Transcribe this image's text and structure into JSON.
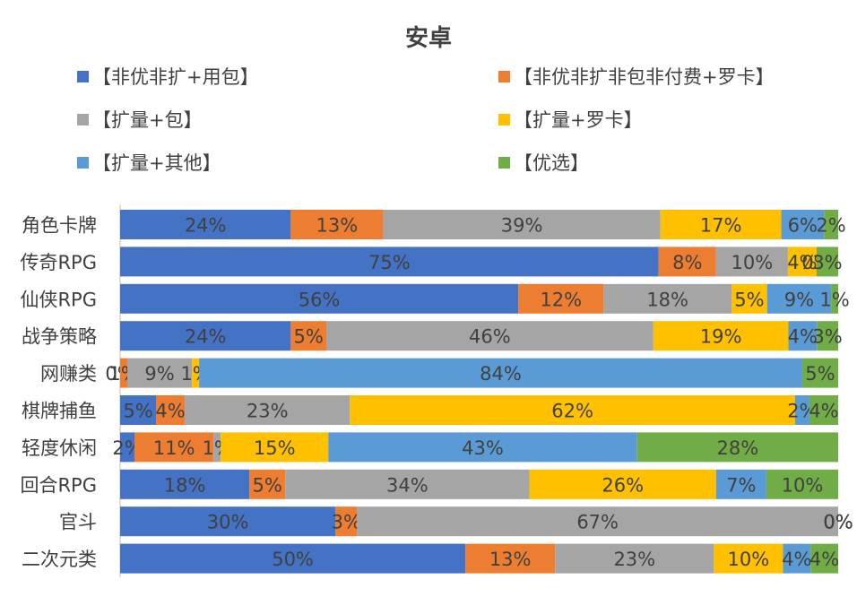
{
  "chart_data": {
    "type": "bar",
    "orientation": "horizontal",
    "stacked": "percent",
    "title": "安卓",
    "categories": [
      "角色卡牌",
      "传奇RPG",
      "仙侠RPG",
      "战争策略",
      "网赚类",
      "棋牌捕鱼",
      "轻度休闲",
      "回合RPG",
      "官斗",
      "二次元类"
    ],
    "series": [
      {
        "name": "【非优非扩+用包】",
        "color": "#4472C4",
        "values": [
          24,
          75,
          56,
          24,
          0,
          5,
          2,
          18,
          30,
          50
        ],
        "labels": [
          "24%",
          "75%",
          "56%",
          "24%",
          "0%",
          "5%",
          "2%",
          "18%",
          "30%",
          "50%"
        ]
      },
      {
        "name": "【非优非扩非包非付费+罗卡】",
        "color": "#ED7D31",
        "values": [
          13,
          8,
          12,
          5,
          1,
          4,
          11,
          5,
          3,
          13
        ],
        "labels": [
          "13%",
          "8%",
          "12%",
          "5%",
          "1%",
          "4%",
          "11%",
          "5%",
          "3%",
          "13%"
        ]
      },
      {
        "name": "【扩量+包】",
        "color": "#A5A5A5",
        "values": [
          39,
          10,
          18,
          46,
          9,
          23,
          1,
          34,
          67,
          23
        ],
        "labels": [
          "39%",
          "10%",
          "18%",
          "46%",
          "9%",
          "23%",
          "1%",
          "34%",
          "67%",
          "23%"
        ]
      },
      {
        "name": "【扩量+罗卡】",
        "color": "#FFC000",
        "values": [
          17,
          4,
          5,
          19,
          1,
          62,
          15,
          26,
          0,
          10
        ],
        "labels": [
          "17%",
          "4%",
          "5%",
          "19%",
          "1%",
          "62%",
          "15%",
          "26%",
          "0%",
          "10%"
        ]
      },
      {
        "name": "【扩量+其他】",
        "color": "#5B9BD5",
        "values": [
          6,
          0,
          9,
          4,
          84,
          2,
          43,
          7,
          0,
          4
        ],
        "labels": [
          "6%",
          "0%",
          "9%",
          "4%",
          "84%",
          "2%",
          "43%",
          "7%",
          "0%",
          "4%"
        ]
      },
      {
        "name": "【优选】",
        "color": "#70AD47",
        "values": [
          2,
          3,
          1,
          3,
          5,
          4,
          28,
          10,
          0,
          4
        ],
        "labels": [
          "2%",
          "3%",
          "1%",
          "3%",
          "5%",
          "4%",
          "28%",
          "10%",
          "0%",
          "4%"
        ]
      }
    ],
    "xlim": [
      0,
      100
    ],
    "grid": false,
    "legend_position": "top"
  }
}
